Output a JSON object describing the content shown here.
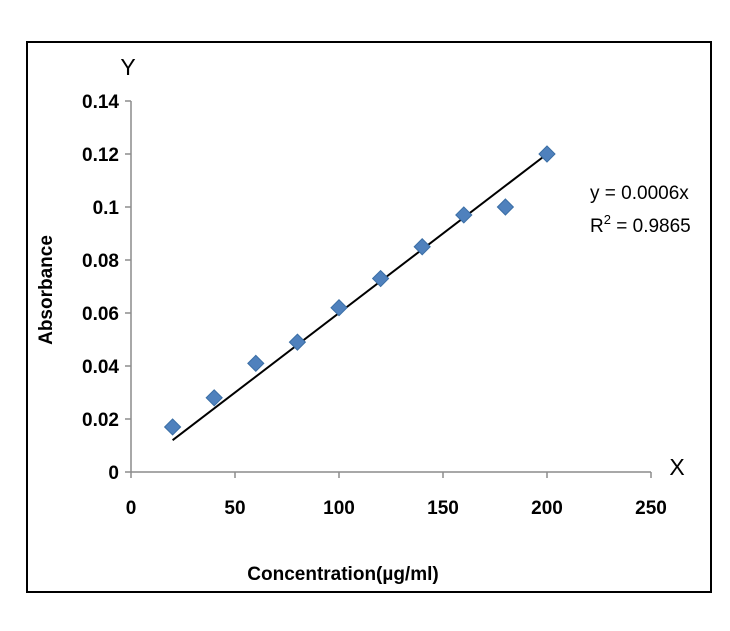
{
  "chart_data": {
    "type": "scatter",
    "xlabel": "Concentration(µg/ml)",
    "ylabel": "Absorbance",
    "x_axis_letter": "X",
    "y_axis_letter": "Y",
    "xlim": [
      0,
      250
    ],
    "ylim": [
      0,
      0.14
    ],
    "x_ticks": [
      "0",
      "50",
      "100",
      "150",
      "200",
      "250"
    ],
    "y_ticks": [
      "0",
      "0.02",
      "0.04",
      "0.06",
      "0.08",
      "0.1",
      "0.12",
      "0.14"
    ],
    "grid": false,
    "legend": "none",
    "series": [
      {
        "x": [
          20,
          40,
          60,
          80,
          100,
          120,
          140,
          160,
          180,
          200
        ],
        "y": [
          0.017,
          0.028,
          0.041,
          0.049,
          0.062,
          0.073,
          0.085,
          0.097,
          0.1,
          0.12
        ],
        "marker": "diamond",
        "color": "#4f81bd"
      }
    ],
    "trendline": {
      "slope": 0.0006,
      "x_range": [
        20,
        200
      ],
      "color": "#000000"
    },
    "annotations": {
      "equation": "y = 0.0006x",
      "r_squared_prefix": "R",
      "r_squared_sup": "2",
      "r_squared_value": " = 0.9865"
    }
  }
}
